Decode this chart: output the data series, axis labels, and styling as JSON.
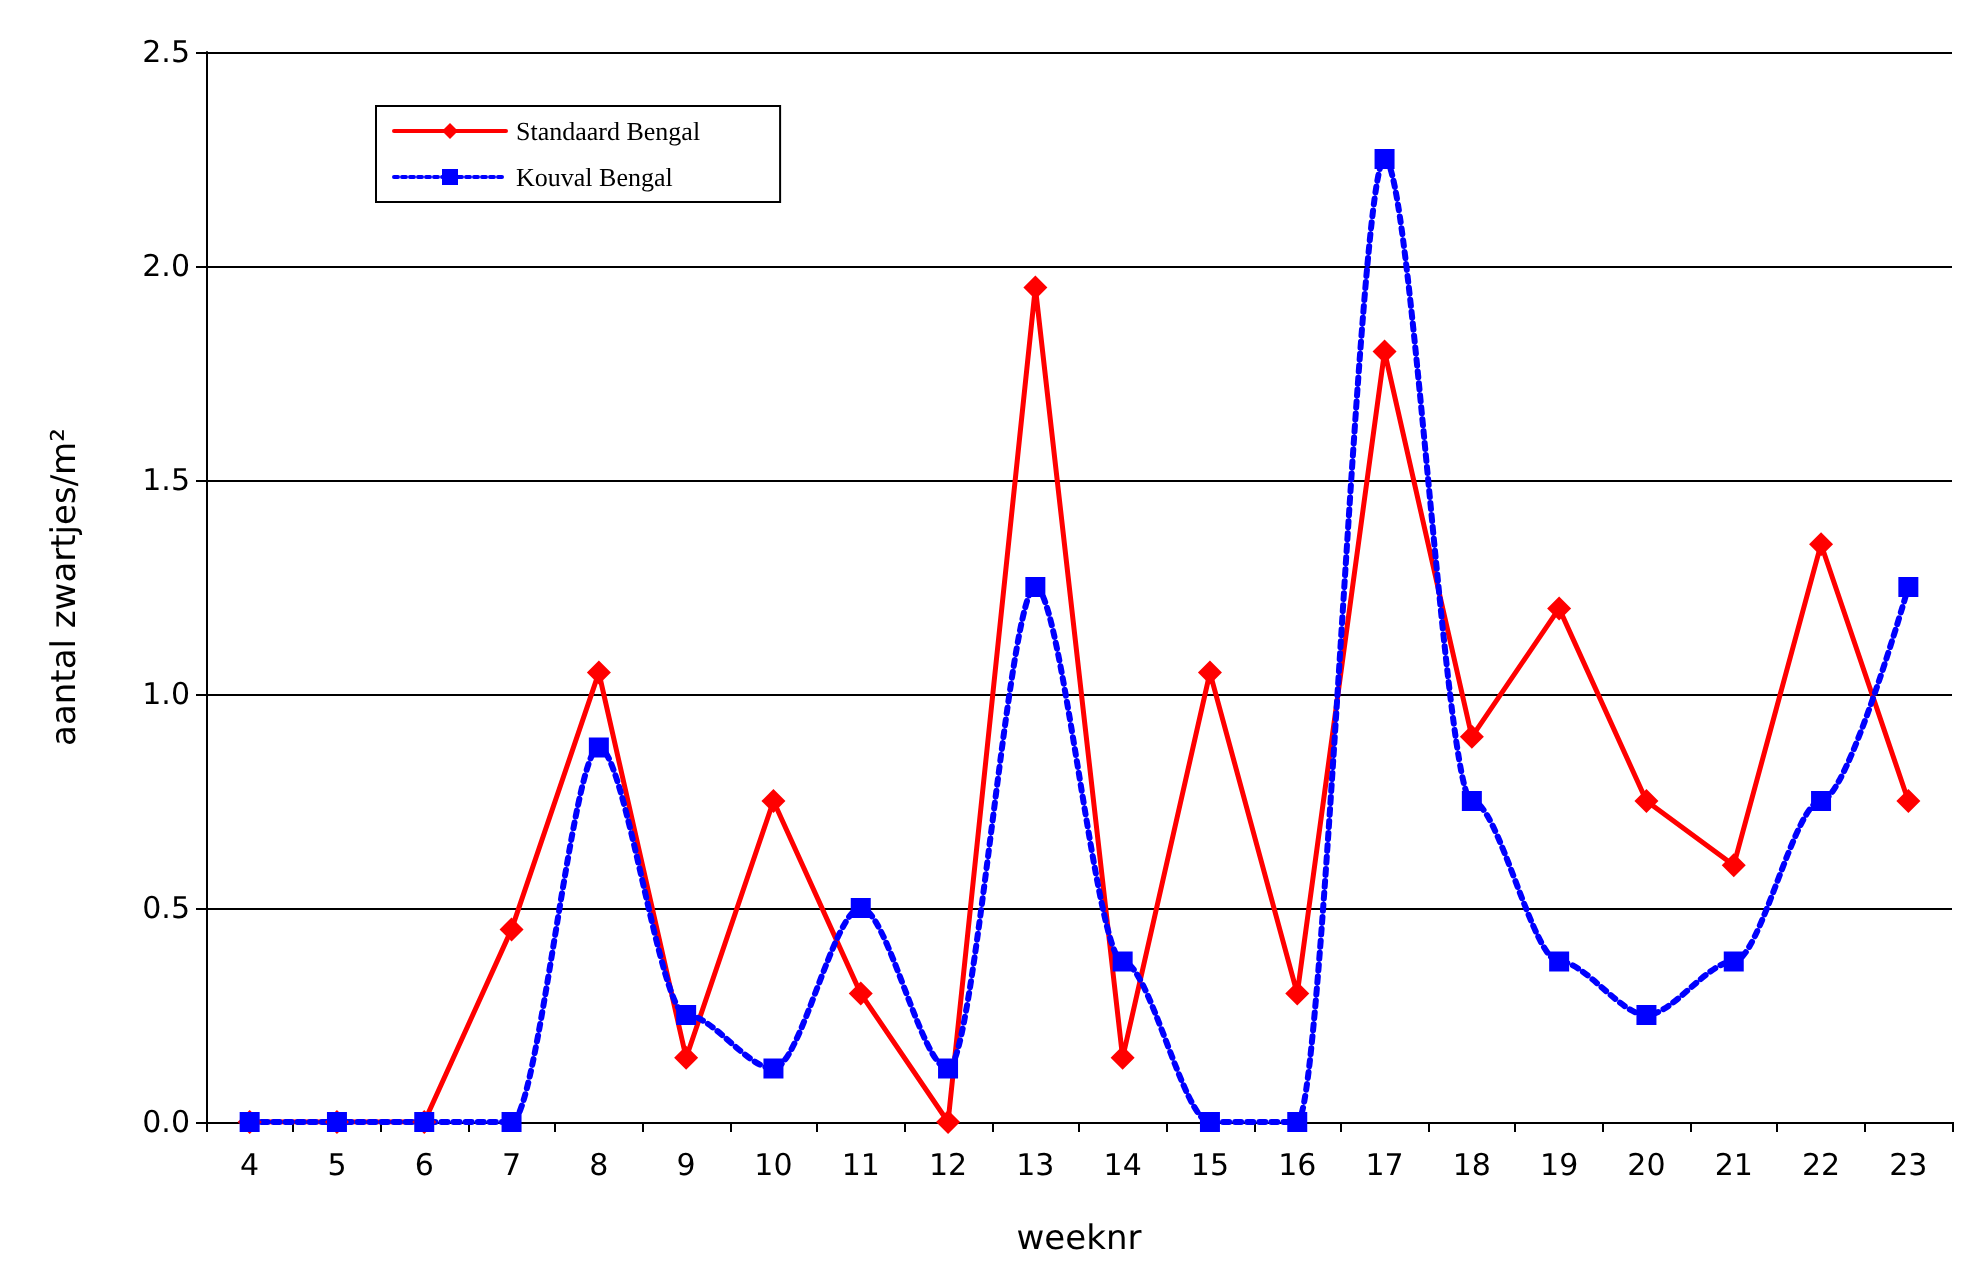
{
  "chart_data": {
    "type": "line",
    "xlabel": "weeknr",
    "ylabel": "aantal zwartjes/m²",
    "categories": [
      "4",
      "5",
      "6",
      "7",
      "8",
      "9",
      "10",
      "11",
      "12",
      "13",
      "14",
      "15",
      "16",
      "17",
      "18",
      "19",
      "20",
      "21",
      "22",
      "23"
    ],
    "series": [
      {
        "name": "Standaard Bengal",
        "color": "#ff0000",
        "marker": "diamond",
        "line_style": "solid",
        "values": [
          0,
          0,
          0,
          0.45,
          1.05,
          0.15,
          0.75,
          0.3,
          0,
          1.95,
          0.15,
          1.05,
          0.3,
          1.8,
          0.9,
          1.2,
          0.75,
          0.6,
          1.35,
          0.75
        ]
      },
      {
        "name": "Kouval Bengal",
        "color": "#0000ff",
        "marker": "square",
        "line_style": "dotted",
        "values": [
          0,
          0,
          0,
          0,
          0.875,
          0.25,
          0.125,
          0.5,
          0.125,
          1.25,
          0.375,
          0,
          0,
          2.25,
          0.75,
          0.375,
          0.25,
          0.375,
          0.75,
          1.25
        ]
      }
    ],
    "ylim": [
      0,
      2.5
    ],
    "yticks": [
      {
        "value": 0,
        "label": "0.0"
      },
      0.5,
      {
        "value": 1,
        "label": "1.0"
      },
      1.5,
      {
        "value": 2,
        "label": "2.0"
      },
      2.5
    ],
    "grid": "y",
    "legend": "top left"
  }
}
